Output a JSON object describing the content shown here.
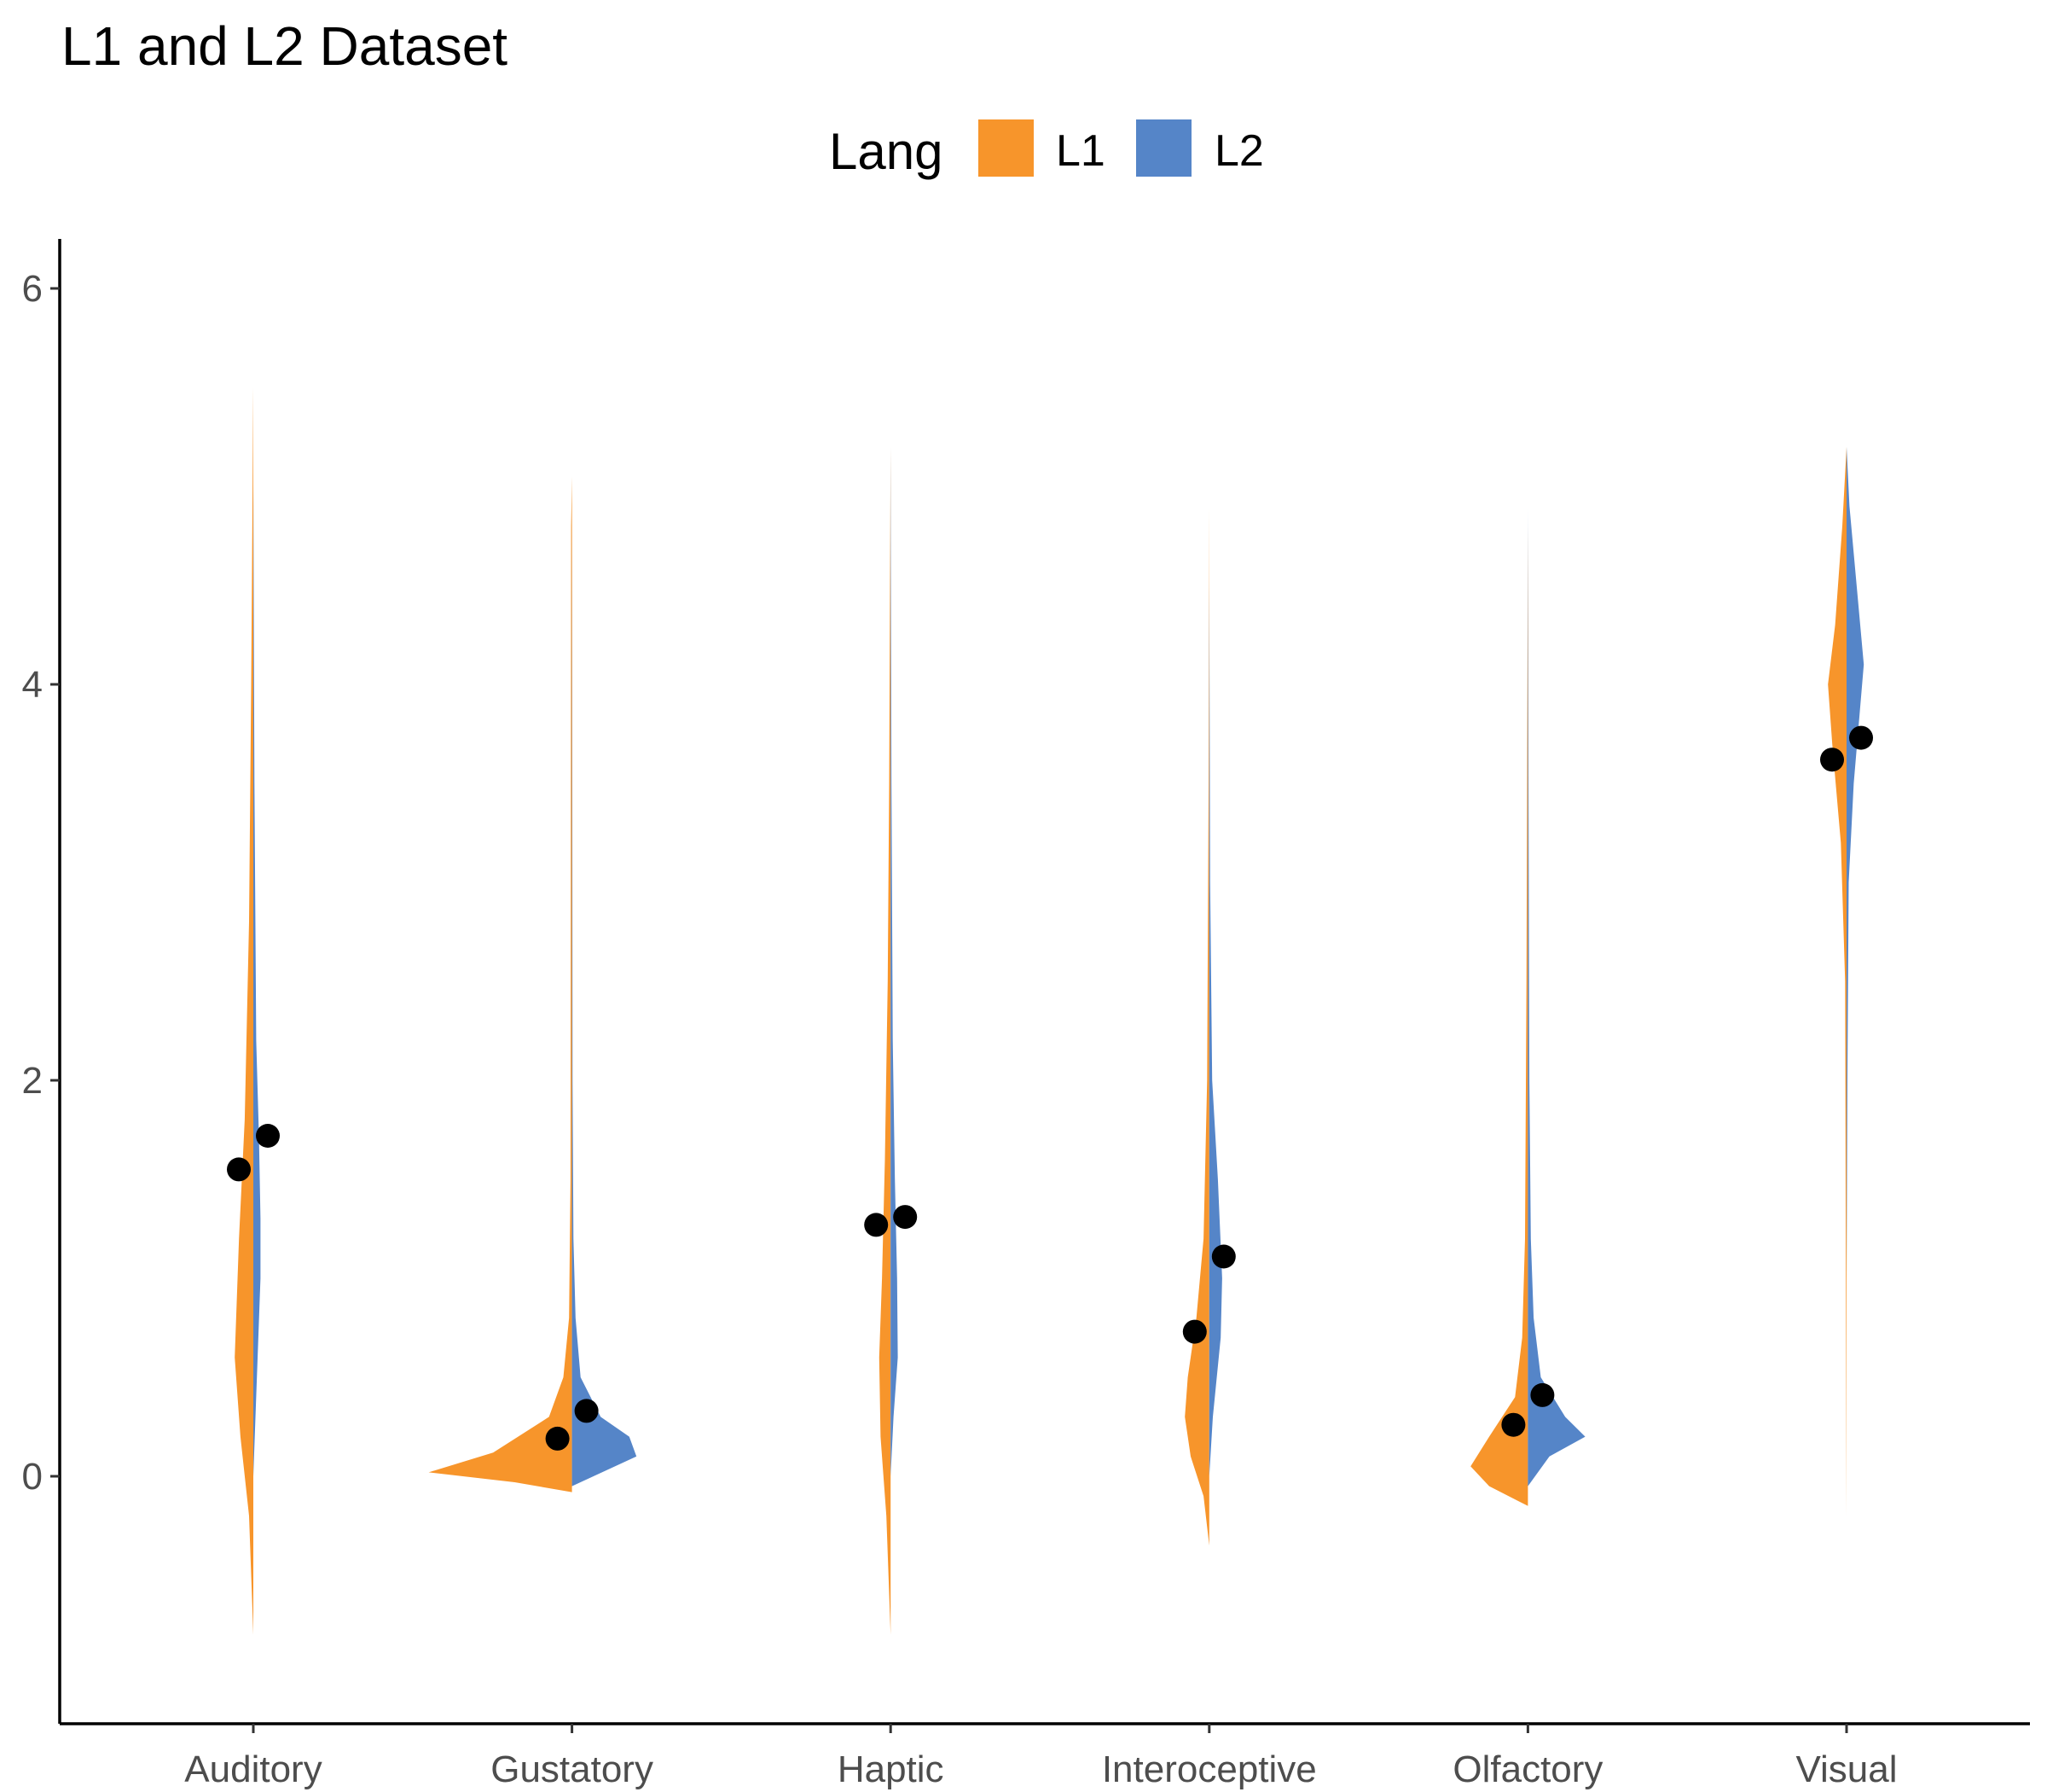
{
  "chart_data": {
    "type": "split-violin",
    "title": "L1 and L2 Dataset",
    "legend": {
      "title": "Lang",
      "placement": "top",
      "entries": [
        {
          "name": "L1",
          "color": "#f7952b"
        },
        {
          "name": "L2",
          "color": "#5585c8"
        }
      ]
    },
    "categories": [
      "Auditory",
      "Gustatory",
      "Haptic",
      "Interoceptive",
      "Olfactory",
      "Visual"
    ],
    "ylim": [
      -1.25,
      6.25
    ],
    "yticks": [
      0,
      2,
      4,
      6
    ],
    "grid": false,
    "xlabel": "",
    "ylabel": "",
    "series": [
      {
        "name": "L1",
        "color": "#f7952b",
        "means": [
          1.55,
          0.19,
          1.27,
          0.73,
          0.26,
          3.62
        ],
        "density_profiles": [
          [
            [
              -0.8,
              0.0
            ],
            [
              -0.2,
              0.03
            ],
            [
              0.2,
              0.09
            ],
            [
              0.6,
              0.13
            ],
            [
              1.2,
              0.1
            ],
            [
              1.8,
              0.06
            ],
            [
              2.8,
              0.03
            ],
            [
              4.0,
              0.015
            ],
            [
              5.5,
              0.0
            ]
          ],
          [
            [
              -0.08,
              0.0
            ],
            [
              -0.03,
              0.4
            ],
            [
              0.02,
              1.0
            ],
            [
              0.12,
              0.55
            ],
            [
              0.3,
              0.16
            ],
            [
              0.5,
              0.06
            ],
            [
              0.8,
              0.02
            ],
            [
              1.5,
              0.01
            ],
            [
              3.5,
              0.008
            ],
            [
              4.8,
              0.006
            ],
            [
              5.05,
              0.0
            ]
          ],
          [
            [
              -0.8,
              0.0
            ],
            [
              -0.2,
              0.03
            ],
            [
              0.2,
              0.07
            ],
            [
              0.6,
              0.08
            ],
            [
              1.0,
              0.06
            ],
            [
              1.6,
              0.04
            ],
            [
              2.5,
              0.02
            ],
            [
              3.5,
              0.01
            ],
            [
              5.2,
              0.0
            ]
          ],
          [
            [
              -0.35,
              0.0
            ],
            [
              -0.1,
              0.04
            ],
            [
              0.1,
              0.13
            ],
            [
              0.3,
              0.17
            ],
            [
              0.5,
              0.15
            ],
            [
              0.8,
              0.09
            ],
            [
              1.2,
              0.04
            ],
            [
              2.0,
              0.015
            ],
            [
              3.5,
              0.005
            ],
            [
              4.9,
              0.0
            ]
          ],
          [
            [
              -0.15,
              0.0
            ],
            [
              -0.05,
              0.27
            ],
            [
              0.05,
              0.4
            ],
            [
              0.2,
              0.27
            ],
            [
              0.4,
              0.09
            ],
            [
              0.7,
              0.04
            ],
            [
              1.2,
              0.02
            ],
            [
              2.5,
              0.01
            ],
            [
              4.8,
              0.0
            ]
          ],
          [
            [
              -0.2,
              0.0
            ],
            [
              1.0,
              0.005
            ],
            [
              2.5,
              0.01
            ],
            [
              3.2,
              0.04
            ],
            [
              3.7,
              0.1
            ],
            [
              4.0,
              0.13
            ],
            [
              4.3,
              0.08
            ],
            [
              4.8,
              0.03
            ],
            [
              5.2,
              0.0
            ]
          ]
        ]
      },
      {
        "name": "L2",
        "color": "#5585c8",
        "means": [
          1.72,
          0.33,
          1.31,
          1.11,
          0.41,
          3.73
        ],
        "density_profiles": [
          [
            [
              0.0,
              0.0
            ],
            [
              0.5,
              0.025
            ],
            [
              1.0,
              0.05
            ],
            [
              1.3,
              0.05
            ],
            [
              1.7,
              0.04
            ],
            [
              2.2,
              0.02
            ],
            [
              3.5,
              0.008
            ],
            [
              5.0,
              0.0
            ]
          ],
          [
            [
              -0.05,
              0.0
            ],
            [
              0.0,
              0.15
            ],
            [
              0.1,
              0.45
            ],
            [
              0.2,
              0.4
            ],
            [
              0.3,
              0.2
            ],
            [
              0.5,
              0.06
            ],
            [
              0.8,
              0.025
            ],
            [
              1.2,
              0.01
            ],
            [
              2.0,
              0.004
            ],
            [
              4.0,
              0.002
            ],
            [
              4.9,
              0.0
            ]
          ],
          [
            [
              0.0,
              0.0
            ],
            [
              0.3,
              0.02
            ],
            [
              0.6,
              0.05
            ],
            [
              1.0,
              0.045
            ],
            [
              1.5,
              0.03
            ],
            [
              2.2,
              0.015
            ],
            [
              3.5,
              0.006
            ],
            [
              5.2,
              0.0
            ]
          ],
          [
            [
              0.0,
              0.0
            ],
            [
              0.3,
              0.025
            ],
            [
              0.7,
              0.08
            ],
            [
              1.0,
              0.09
            ],
            [
              1.5,
              0.06
            ],
            [
              2.0,
              0.02
            ],
            [
              3.0,
              0.006
            ],
            [
              4.5,
              0.0
            ]
          ],
          [
            [
              -0.05,
              0.0
            ],
            [
              0.1,
              0.15
            ],
            [
              0.2,
              0.4
            ],
            [
              0.3,
              0.26
            ],
            [
              0.5,
              0.09
            ],
            [
              0.8,
              0.04
            ],
            [
              1.2,
              0.02
            ],
            [
              2.0,
              0.01
            ],
            [
              3.5,
              0.004
            ],
            [
              4.9,
              0.0
            ]
          ],
          [
            [
              1.0,
              0.0
            ],
            [
              2.0,
              0.006
            ],
            [
              3.0,
              0.015
            ],
            [
              3.5,
              0.05
            ],
            [
              4.1,
              0.12
            ],
            [
              4.5,
              0.07
            ],
            [
              4.9,
              0.02
            ],
            [
              5.2,
              0.0
            ]
          ]
        ]
      }
    ]
  }
}
